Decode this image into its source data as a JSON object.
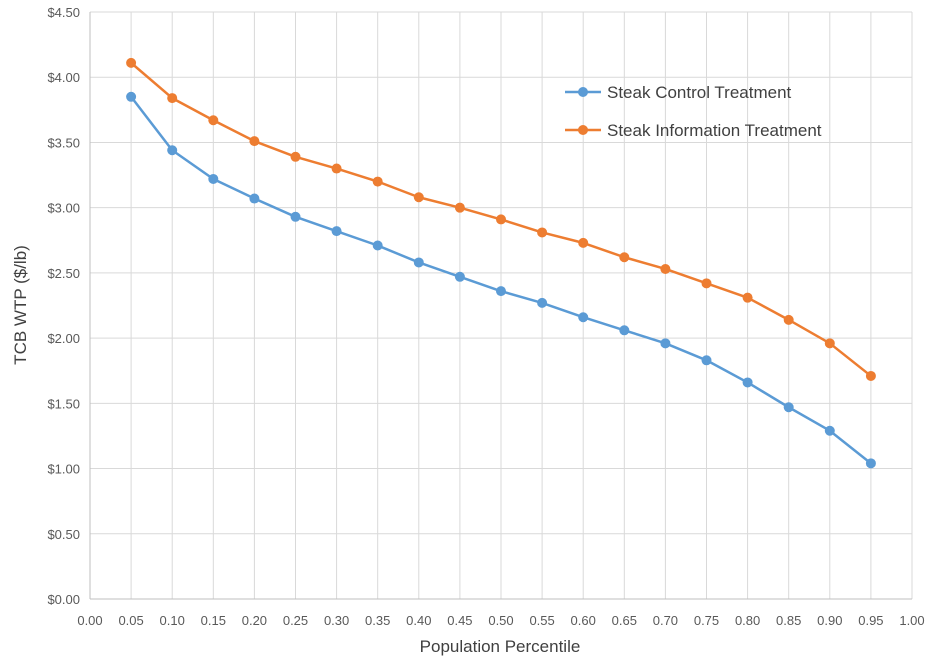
{
  "chart_data": {
    "type": "line",
    "title": "",
    "xlabel": "Population Percentile",
    "ylabel": "TCB WTP ($/lb)",
    "xlim": [
      0,
      1
    ],
    "ylim": [
      0,
      4.5
    ],
    "grid": true,
    "legend_position": "top-right",
    "x_ticks": [
      "0.00",
      "0.05",
      "0.10",
      "0.15",
      "0.20",
      "0.25",
      "0.30",
      "0.35",
      "0.40",
      "0.45",
      "0.50",
      "0.55",
      "0.60",
      "0.65",
      "0.70",
      "0.75",
      "0.80",
      "0.85",
      "0.90",
      "0.95",
      "1.00"
    ],
    "y_ticks": [
      "$0.00",
      "$0.50",
      "$1.00",
      "$1.50",
      "$2.00",
      "$2.50",
      "$3.00",
      "$3.50",
      "$4.00",
      "$4.50"
    ],
    "x": [
      0.05,
      0.1,
      0.15,
      0.2,
      0.25,
      0.3,
      0.35,
      0.4,
      0.45,
      0.5,
      0.55,
      0.6,
      0.65,
      0.7,
      0.75,
      0.8,
      0.85,
      0.9,
      0.95
    ],
    "series": [
      {
        "name": "Steak Control Treatment",
        "color": "#5B9BD5",
        "values": [
          3.85,
          3.44,
          3.22,
          3.07,
          2.93,
          2.82,
          2.71,
          2.58,
          2.47,
          2.36,
          2.27,
          2.16,
          2.06,
          1.96,
          1.83,
          1.66,
          1.47,
          1.29,
          1.04
        ]
      },
      {
        "name": "Steak Information Treatment",
        "color": "#ED7D31",
        "values": [
          4.11,
          3.84,
          3.67,
          3.51,
          3.39,
          3.3,
          3.2,
          3.08,
          3.0,
          2.91,
          2.81,
          2.73,
          2.62,
          2.53,
          2.42,
          2.31,
          2.14,
          1.96,
          1.71
        ]
      }
    ]
  }
}
